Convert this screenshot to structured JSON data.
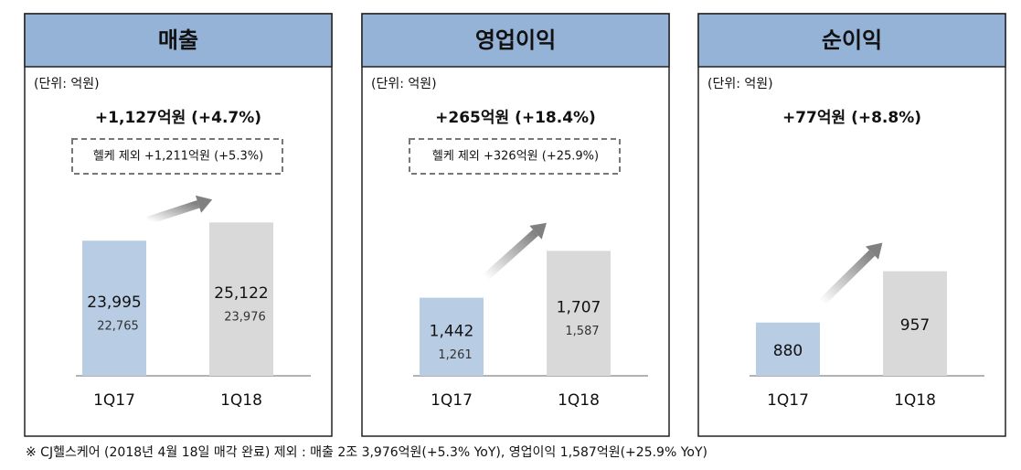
{
  "chart_data": [
    {
      "type": "bar",
      "title": "매출",
      "unit": "(단위: 억원)",
      "headline": "+1,127억원 (+4.7%)",
      "note": "헬케 제외 +1,211억원 (+5.3%)",
      "categories": [
        "1Q17",
        "1Q18"
      ],
      "values": [
        23995,
        25122
      ],
      "value_labels": [
        "23,995",
        "25,122"
      ],
      "excluding_labels": [
        "22,765",
        "23,976"
      ],
      "colors": [
        "#b8cce4",
        "#d9d9d9"
      ],
      "ylim": [
        15650,
        27000
      ]
    },
    {
      "type": "bar",
      "title": "영업이익",
      "unit": "(단위: 억원)",
      "headline": "+265억원 (+18.4%)",
      "note": "헬케 제외 +326억원 (+25.9%)",
      "categories": [
        "1Q17",
        "1Q18"
      ],
      "values": [
        1442,
        1707
      ],
      "value_labels": [
        "1,442",
        "1,707"
      ],
      "excluding_labels": [
        "1,261",
        "1,587"
      ],
      "colors": [
        "#b8cce4",
        "#d9d9d9"
      ],
      "ylim": [
        1000,
        2040
      ]
    },
    {
      "type": "bar",
      "title": "순이익",
      "unit": "(단위: 억원)",
      "headline": "+77억원 (+8.8%)",
      "categories": [
        "1Q17",
        "1Q18"
      ],
      "values": [
        880,
        957
      ],
      "colors": [
        "#b8cce4",
        "#d9d9d9"
      ],
      "ylim": [
        800,
        1076
      ]
    }
  ],
  "footnote": "※ CJ헬스케어 (2018년 4월 18일 매각 완료) 제외 : 매출 2조 3,976억원(+5.3% YoY), 영업이익  1,587억원(+25.9% YoY)"
}
